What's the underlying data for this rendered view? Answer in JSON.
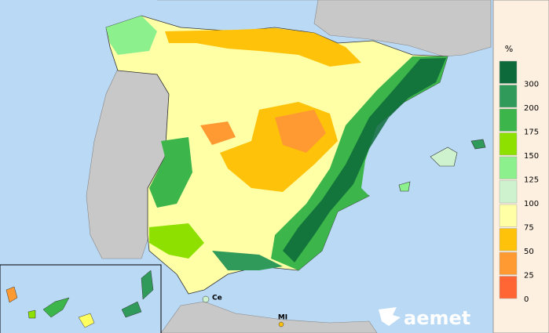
{
  "legend": {
    "title": "%",
    "items": [
      {
        "label": "300",
        "color": "#0d6a3a"
      },
      {
        "label": "200",
        "color": "#2f9a5a"
      },
      {
        "label": "175",
        "color": "#3cb54a"
      },
      {
        "label": "150",
        "color": "#8ee000"
      },
      {
        "label": "125",
        "color": "#8cf08c"
      },
      {
        "label": "100",
        "color": "#cdf2cd"
      },
      {
        "label": "75",
        "color": "#ffffa6"
      },
      {
        "label": "50",
        "color": "#ffc20a"
      },
      {
        "label": "25",
        "color": "#ff9a33"
      },
      {
        "label": "0",
        "color": "#ff6633"
      }
    ]
  },
  "places": {
    "ceuta": "Ce",
    "melilla": "MI"
  },
  "logo": "aemet"
}
